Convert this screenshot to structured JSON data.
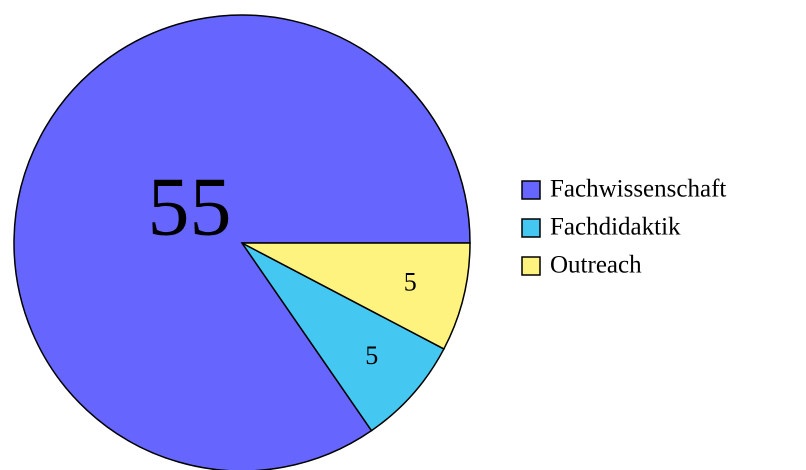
{
  "chart_data": {
    "type": "pie",
    "categories": [
      "Fachwissenschaft",
      "Fachdidaktik",
      "Outreach"
    ],
    "values": [
      55,
      5,
      5
    ],
    "colors": [
      "#6666ff",
      "#44c8f2",
      "#fff37f"
    ],
    "legend": "right"
  }
}
